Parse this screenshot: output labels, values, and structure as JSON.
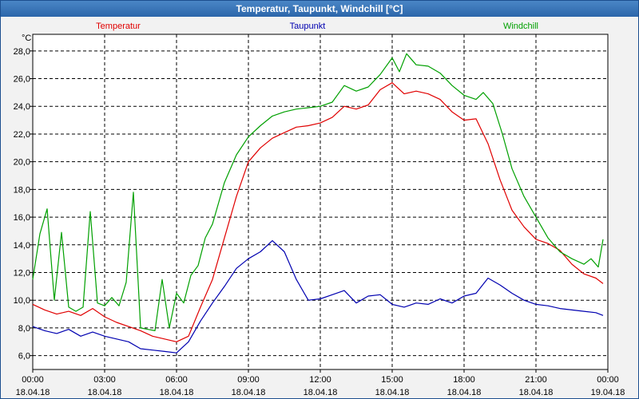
{
  "window": {
    "title": "Temperatur, Taupunkt, Windchill [°C]"
  },
  "chart_data": {
    "type": "line",
    "title": "Temperatur, Taupunkt, Windchill [°C]",
    "ylabel": "°C",
    "ylim": [
      5.0,
      29.2
    ],
    "yticks": [
      "6,0",
      "8,0",
      "10,0",
      "12,0",
      "14,0",
      "16,0",
      "18,0",
      "20,0",
      "22,0",
      "24,0",
      "26,0",
      "28,0"
    ],
    "yticks_values": [
      6,
      8,
      10,
      12,
      14,
      16,
      18,
      20,
      22,
      24,
      26,
      28
    ],
    "xlim": [
      0,
      24
    ],
    "xticks": [
      {
        "time": "00:00",
        "date": "18.04.18"
      },
      {
        "time": "03:00",
        "date": "18.04.18"
      },
      {
        "time": "06:00",
        "date": "18.04.18"
      },
      {
        "time": "09:00",
        "date": "18.04.18"
      },
      {
        "time": "12:00",
        "date": "18.04.18"
      },
      {
        "time": "15:00",
        "date": "18.04.18"
      },
      {
        "time": "18:00",
        "date": "18.04.18"
      },
      {
        "time": "21:00",
        "date": "18.04.18"
      },
      {
        "time": "00:00",
        "date": "19.04.18"
      }
    ],
    "xticks_hours": [
      0,
      3,
      6,
      9,
      12,
      15,
      18,
      21,
      24
    ],
    "grid": true,
    "legend_position": "top",
    "series": [
      {
        "name": "Temperatur",
        "color": "#e00000",
        "x": [
          0,
          0.5,
          1,
          1.5,
          2,
          2.5,
          3,
          3.5,
          4,
          4.5,
          5,
          5.5,
          6,
          6.5,
          7,
          7.5,
          8,
          8.5,
          9,
          9.5,
          10,
          10.5,
          11,
          11.5,
          12,
          12.5,
          13,
          13.5,
          14,
          14.5,
          15,
          15.5,
          16,
          16.5,
          17,
          17.5,
          18,
          18.5,
          19,
          19.5,
          20,
          20.5,
          21,
          21.5,
          22,
          22.5,
          23,
          23.5,
          23.8
        ],
        "values": [
          9.7,
          9.3,
          9.0,
          9.2,
          8.9,
          9.4,
          8.8,
          8.4,
          8.1,
          7.8,
          7.4,
          7.2,
          7.0,
          7.4,
          9.5,
          11.5,
          14.5,
          17.5,
          20.0,
          21.0,
          21.7,
          22.1,
          22.5,
          22.6,
          22.8,
          23.2,
          24.0,
          23.8,
          24.1,
          25.2,
          25.7,
          24.9,
          25.1,
          24.9,
          24.5,
          23.6,
          23.0,
          23.1,
          21.3,
          18.7,
          16.5,
          15.3,
          14.4,
          14.1,
          13.6,
          12.6,
          11.9,
          11.6,
          11.2
        ]
      },
      {
        "name": "Taupunkt",
        "color": "#0000b0",
        "x": [
          0,
          0.5,
          1,
          1.5,
          2,
          2.5,
          3,
          3.5,
          4,
          4.5,
          5,
          5.5,
          6,
          6.5,
          7,
          7.5,
          8,
          8.5,
          9,
          9.5,
          10,
          10.5,
          11,
          11.5,
          12,
          12.5,
          13,
          13.5,
          14,
          14.5,
          15,
          15.5,
          16,
          16.5,
          17,
          17.5,
          18,
          18.5,
          19,
          19.5,
          20,
          20.5,
          21,
          21.5,
          22,
          22.5,
          23,
          23.5,
          23.8
        ],
        "values": [
          8.1,
          7.8,
          7.6,
          7.9,
          7.4,
          7.7,
          7.4,
          7.2,
          7.0,
          6.5,
          6.4,
          6.3,
          6.2,
          7.0,
          8.5,
          9.8,
          11.0,
          12.3,
          13.0,
          13.5,
          14.3,
          13.5,
          11.5,
          10.0,
          10.1,
          10.4,
          10.7,
          9.8,
          10.3,
          10.4,
          9.7,
          9.5,
          9.8,
          9.7,
          10.1,
          9.8,
          10.3,
          10.5,
          11.6,
          11.1,
          10.5,
          10.0,
          9.7,
          9.6,
          9.4,
          9.3,
          9.2,
          9.1,
          8.9
        ]
      },
      {
        "name": "Windchill",
        "color": "#00a000",
        "x": [
          0,
          0.3,
          0.6,
          0.9,
          1.2,
          1.5,
          1.8,
          2.1,
          2.4,
          2.7,
          3,
          3.3,
          3.6,
          3.9,
          4.2,
          4.5,
          4.8,
          5.1,
          5.4,
          5.7,
          6,
          6.3,
          6.6,
          6.9,
          7.2,
          7.5,
          8,
          8.5,
          9,
          9.5,
          10,
          10.5,
          11,
          11.5,
          12,
          12.5,
          13,
          13.5,
          14,
          14.5,
          15,
          15.3,
          15.6,
          16,
          16.5,
          17,
          17.5,
          18,
          18.5,
          18.8,
          19.2,
          19.6,
          20,
          20.5,
          21,
          21.5,
          22,
          22.5,
          23,
          23.3,
          23.6,
          23.8
        ],
        "values": [
          11.5,
          14.8,
          16.6,
          10.0,
          14.9,
          9.5,
          9.2,
          9.5,
          16.4,
          9.8,
          9.6,
          10.2,
          9.6,
          11.3,
          17.8,
          8.0,
          7.9,
          7.8,
          11.5,
          8.0,
          10.5,
          9.8,
          11.8,
          12.5,
          14.5,
          15.5,
          18.5,
          20.5,
          21.8,
          22.6,
          23.3,
          23.6,
          23.8,
          23.9,
          24.0,
          24.3,
          25.5,
          25.1,
          25.4,
          26.3,
          27.5,
          26.5,
          27.8,
          27.0,
          26.9,
          26.4,
          25.5,
          24.8,
          24.5,
          25.0,
          24.2,
          22.0,
          19.5,
          17.5,
          16.0,
          14.5,
          13.5,
          13.0,
          12.6,
          13.0,
          12.4,
          14.4
        ]
      }
    ]
  }
}
